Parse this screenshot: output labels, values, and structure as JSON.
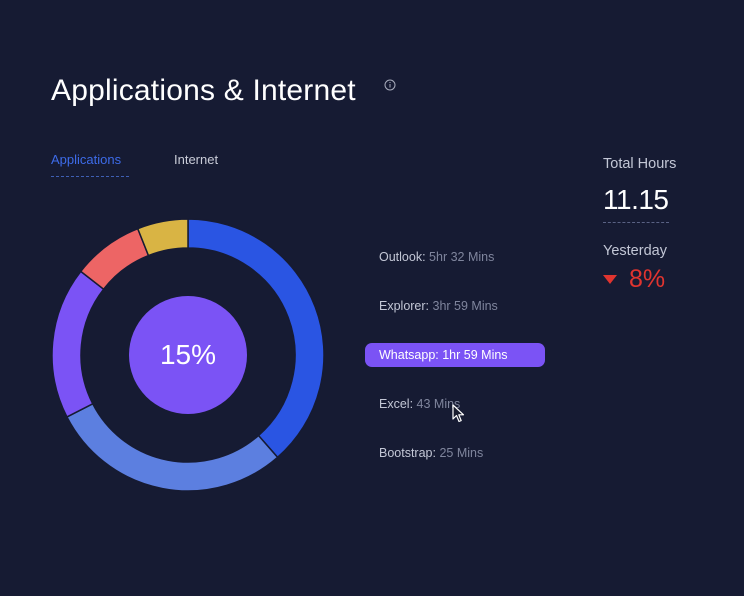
{
  "header": {
    "title": "Applications & Internet",
    "info_icon": "info-icon"
  },
  "tabs": [
    {
      "label": "Applications",
      "active": true
    },
    {
      "label": "Internet",
      "active": false
    }
  ],
  "donut": {
    "center_label": "15%",
    "segments": [
      {
        "app": "Outlook",
        "percent": 32,
        "color": "#2a55e3"
      },
      {
        "app": "Explorer",
        "percent": 24,
        "color": "#5c7fe0"
      },
      {
        "app": "Whatsapp",
        "percent": 15,
        "color": "#7b53f5"
      },
      {
        "app": "Excel",
        "percent": 7,
        "color": "#ed6565"
      },
      {
        "app": "Bootstrap",
        "percent": 5,
        "color": "#d9b444"
      }
    ]
  },
  "apps": [
    {
      "name": "Outlook",
      "duration": "5hr 32 Mins",
      "active": false
    },
    {
      "name": "Explorer",
      "duration": "3hr 59 Mins",
      "active": false
    },
    {
      "name": "Whatsapp",
      "duration": "1hr 59 Mins",
      "active": true
    },
    {
      "name": "Excel",
      "duration": "43 Mins",
      "active": false
    },
    {
      "name": "Bootstrap",
      "duration": "25 Mins",
      "active": false
    }
  ],
  "stats": {
    "total_label": "Total Hours",
    "total_value": "11.15",
    "yesterday_label": "Yesterday",
    "yesterday_change": "8%",
    "change_direction": "down",
    "change_color": "#e0342f"
  },
  "colors": {
    "background": "#161b33",
    "accent": "#3d6be8",
    "highlight": "#7b53f5"
  }
}
